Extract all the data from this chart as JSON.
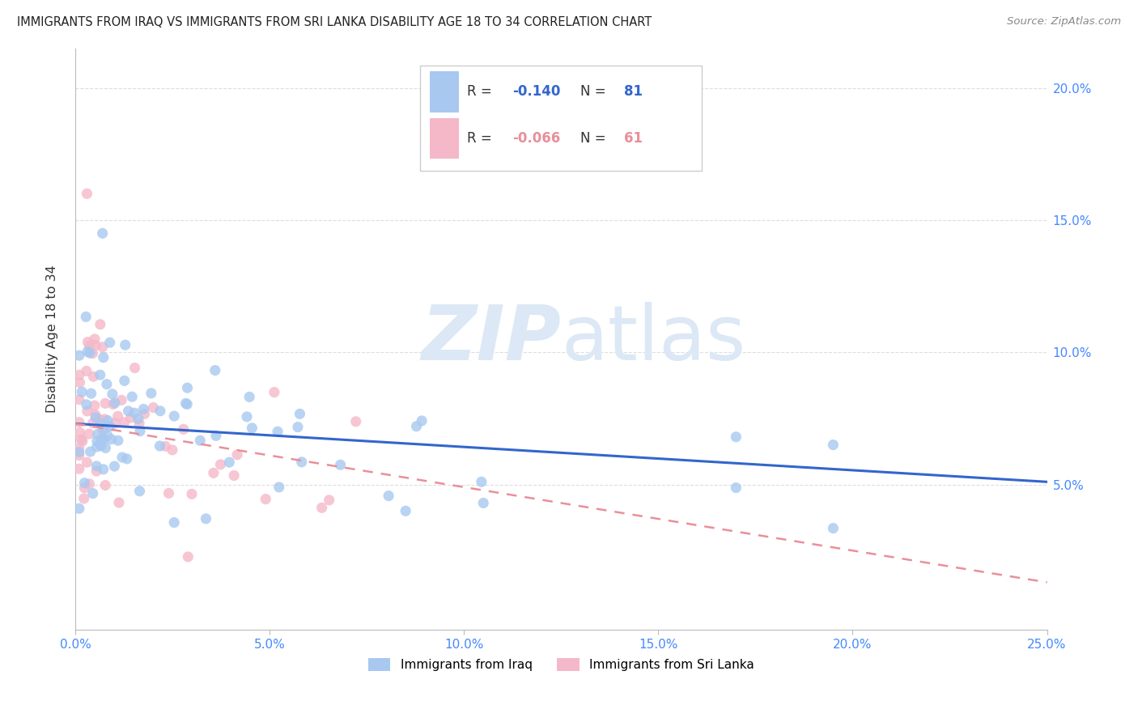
{
  "title": "IMMIGRANTS FROM IRAQ VS IMMIGRANTS FROM SRI LANKA DISABILITY AGE 18 TO 34 CORRELATION CHART",
  "source": "Source: ZipAtlas.com",
  "ylabel": "Disability Age 18 to 34",
  "ytick_labels": [
    "",
    "5.0%",
    "10.0%",
    "15.0%",
    "20.0%"
  ],
  "ytick_values": [
    0.0,
    0.05,
    0.1,
    0.15,
    0.2
  ],
  "xlim": [
    0.0,
    0.25
  ],
  "ylim": [
    -0.005,
    0.215
  ],
  "legend_iraq": "Immigrants from Iraq",
  "legend_srilanka": "Immigrants from Sri Lanka",
  "R_iraq": "-0.140",
  "N_iraq": "81",
  "R_srilanka": "-0.066",
  "N_srilanka": "61",
  "color_iraq": "#a8c8f0",
  "color_srilanka": "#f5b8c8",
  "color_iraq_line": "#3366cc",
  "color_srilanka_line": "#e8909a",
  "color_R_iraq": "#3366cc",
  "color_N_iraq": "#3366cc",
  "color_R_srilanka": "#e8909a",
  "color_N_srilanka": "#e8909a",
  "watermark_zip": "ZIP",
  "watermark_atlas": "atlas",
  "watermark_color": "#dce8f5",
  "xtick_color": "#4488ff",
  "ytick_color": "#4488ff",
  "iraq_line_y0": 0.073,
  "iraq_line_y1": 0.051,
  "sri_line_y0": 0.073,
  "sri_line_y1": 0.013,
  "grid_color": "#dddddd"
}
